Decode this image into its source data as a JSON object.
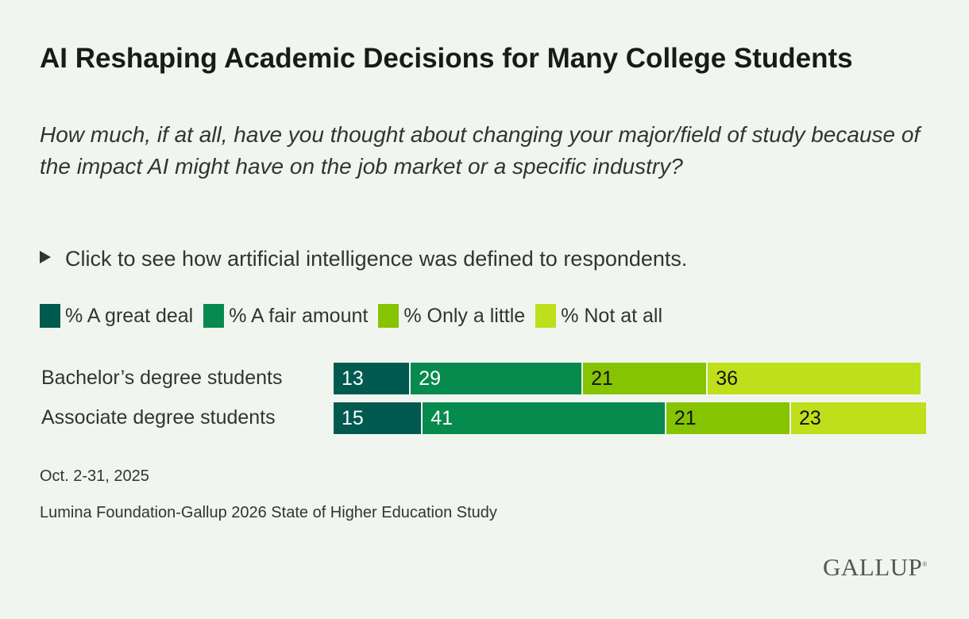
{
  "title": "AI Reshaping Academic Decisions for Many College Students",
  "subtitle": "How much, if at all, have you thought about changing your major/field of study because of the impact AI might have on the job market or a specific industry?",
  "disclosure": "Click to see how artificial intelligence was defined to respondents.",
  "chart_data": {
    "type": "bar",
    "orientation": "horizontal",
    "stacked": true,
    "categories": [
      "Bachelor’s degree students",
      "Associate degree students"
    ],
    "series": [
      {
        "name": "% A great deal",
        "color": "#005a50",
        "values": [
          13,
          15
        ]
      },
      {
        "name": "% A fair amount",
        "color": "#068a4e",
        "values": [
          29,
          41
        ]
      },
      {
        "name": "% Only a little",
        "color": "#86c300",
        "values": [
          21,
          21
        ]
      },
      {
        "name": "% Not at all",
        "color": "#bedf1a",
        "values": [
          36,
          23
        ]
      }
    ],
    "legend_position": "top-left",
    "grid": false
  },
  "date": "Oct. 2-31, 2025",
  "source": "Lumina Foundation-Gallup 2026 State of Higher Education Study",
  "logo": "GALLUP"
}
